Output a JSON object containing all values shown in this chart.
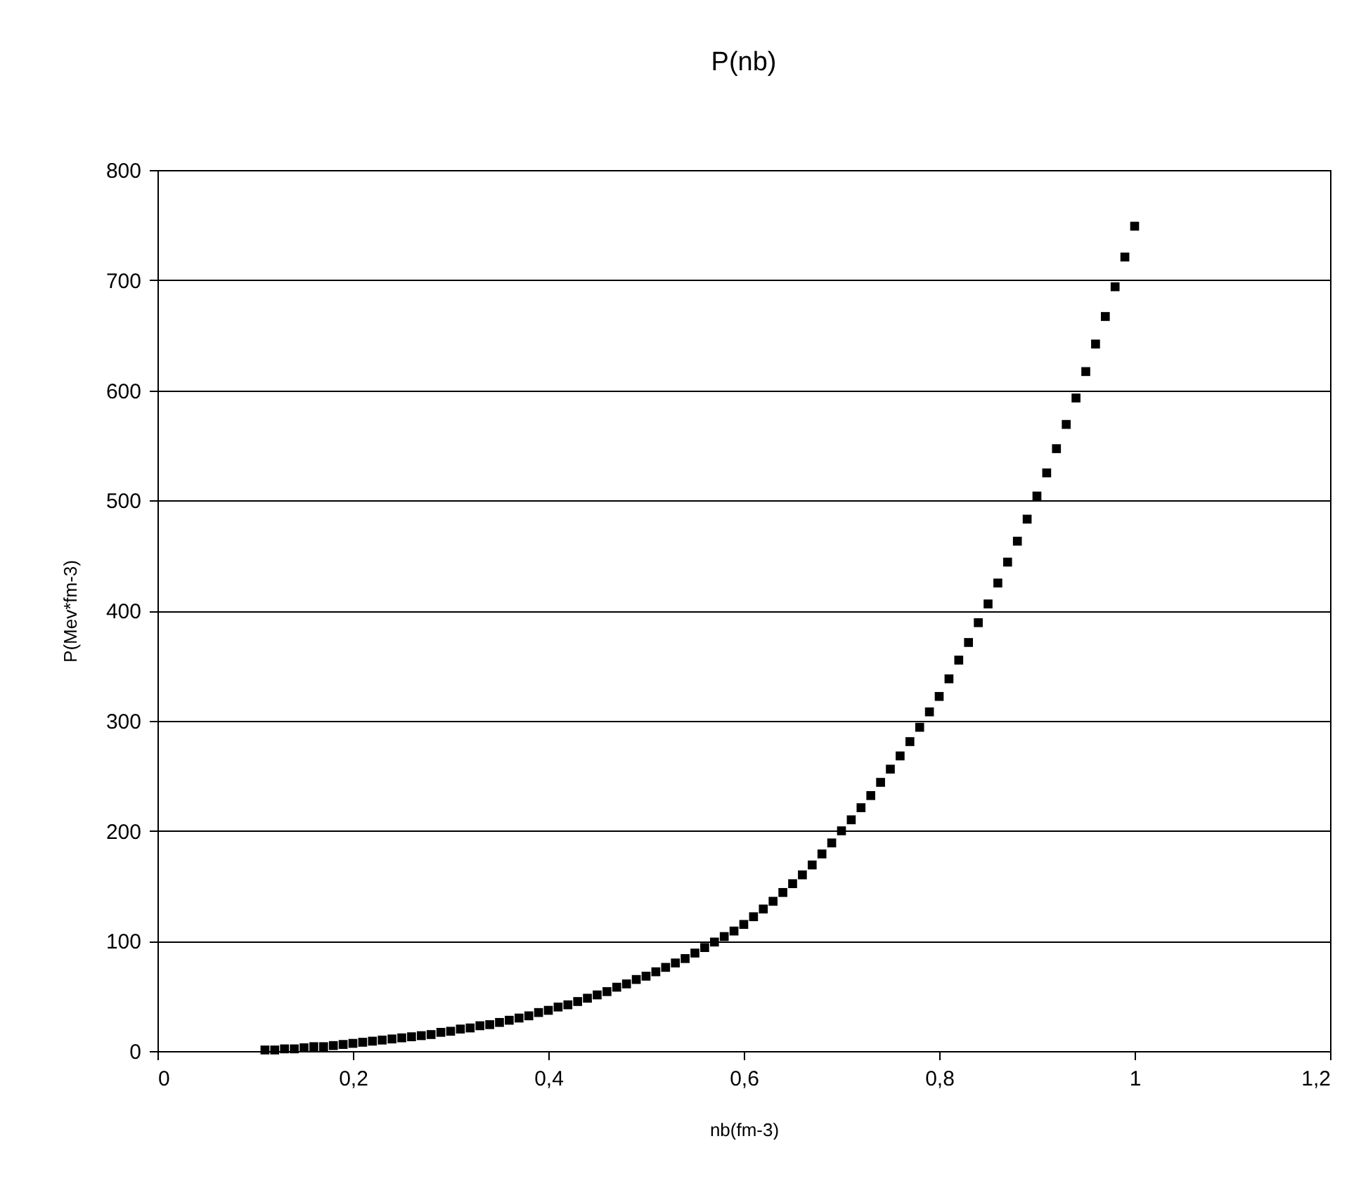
{
  "chart_data": {
    "type": "scatter",
    "title": "P(nb)",
    "xlabel": "nb(fm-3)",
    "ylabel": "P(Mev*fm-3)",
    "x": [
      0.11,
      0.12,
      0.13,
      0.14,
      0.15,
      0.16,
      0.17,
      0.18,
      0.19,
      0.2,
      0.21,
      0.22,
      0.23,
      0.24,
      0.25,
      0.26,
      0.27,
      0.28,
      0.29,
      0.3,
      0.31,
      0.32,
      0.33,
      0.34,
      0.35,
      0.36,
      0.37,
      0.38,
      0.39,
      0.4,
      0.41,
      0.42,
      0.43,
      0.44,
      0.45,
      0.46,
      0.47,
      0.48,
      0.49,
      0.5,
      0.51,
      0.52,
      0.53,
      0.54,
      0.55,
      0.56,
      0.57,
      0.58,
      0.59,
      0.6,
      0.61,
      0.62,
      0.63,
      0.64,
      0.65,
      0.66,
      0.67,
      0.68,
      0.69,
      0.7,
      0.71,
      0.72,
      0.73,
      0.74,
      0.75,
      0.76,
      0.77,
      0.78,
      0.79,
      0.8,
      0.81,
      0.82,
      0.83,
      0.84,
      0.85,
      0.86,
      0.87,
      0.88,
      0.89,
      0.9,
      0.91,
      0.92,
      0.93,
      0.94,
      0.95,
      0.96,
      0.97,
      0.98,
      0.99,
      1.0
    ],
    "series": [
      {
        "color": "#000000",
        "values": [
          1,
          1,
          2,
          2,
          3,
          4,
          4,
          5,
          6,
          7,
          8,
          9,
          10,
          11,
          12,
          13,
          14,
          15,
          17,
          18,
          20,
          21,
          23,
          24,
          26,
          28,
          30,
          32,
          35,
          37,
          40,
          42,
          45,
          48,
          51,
          54,
          58,
          61,
          65,
          68,
          72,
          76,
          80,
          84,
          89,
          94,
          99,
          104,
          109,
          115,
          122,
          129,
          136,
          144,
          152,
          160,
          169,
          179,
          189,
          200,
          210,
          221,
          232,
          244,
          256,
          268,
          281,
          294,
          308,
          322,
          338,
          355,
          371,
          389,
          406,
          425,
          444,
          463,
          483,
          504,
          525,
          547,
          569,
          593,
          617,
          642,
          667,
          694,
          721,
          749
        ]
      }
    ],
    "xlim": [
      0,
      1.2
    ],
    "xticks": [
      0,
      {
        "value": 0.2,
        "label": "0,2"
      },
      {
        "value": 0.4,
        "label": "0,4"
      },
      {
        "value": 0.6,
        "label": "0,6"
      },
      {
        "value": 0.8,
        "label": "0,8"
      },
      1,
      {
        "value": 1.2,
        "label": "1,2"
      }
    ],
    "ylim": [
      0,
      800
    ],
    "yticks": [
      0,
      100,
      200,
      300,
      400,
      500,
      600,
      700,
      800
    ],
    "grid": "y",
    "marker": "square"
  }
}
